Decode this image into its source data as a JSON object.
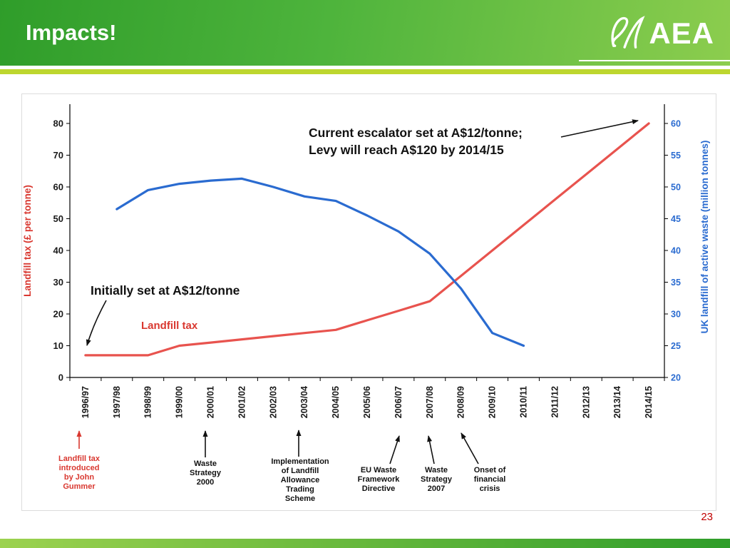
{
  "header": {
    "title": "Impacts!",
    "logo_text": "AEA"
  },
  "page_number": "23",
  "colors": {
    "header_gradient_start": "#2f9d2a",
    "header_gradient_end": "#8ccd4e",
    "accent_line": "#bdd62f",
    "landfill_tax_line": "#e8534e",
    "waste_line": "#2a6bd0",
    "event_red": "#d93830",
    "page_number_red": "#c00000"
  },
  "chart_data": {
    "type": "line",
    "categories": [
      "1996/97",
      "1997/98",
      "1998/99",
      "1999/00",
      "2000/01",
      "2001/02",
      "2002/03",
      "2003/04",
      "2004/05",
      "2005/06",
      "2006/07",
      "2007/08",
      "2008/09",
      "2009/10",
      "2010/11",
      "2011/12",
      "2012/13",
      "2013/14",
      "2014/15"
    ],
    "series": [
      {
        "name": "Landfill tax",
        "axis": "left",
        "color": "#e8534e",
        "values": [
          7,
          7,
          7,
          10,
          11,
          12,
          13,
          14,
          15,
          18,
          21,
          24,
          32,
          40,
          48,
          56,
          64,
          72,
          80
        ]
      },
      {
        "name": "UK landfill of active waste",
        "axis": "right",
        "color": "#2a6bd0",
        "values": [
          null,
          46.5,
          49.5,
          50.5,
          51,
          51.3,
          50,
          48.5,
          47.8,
          45.5,
          43,
          39.5,
          34,
          27,
          25,
          null,
          null,
          null,
          null
        ]
      }
    ],
    "left_axis": {
      "label": "Landfill tax (£ per tonne)",
      "min": 0,
      "max": 80,
      "ticks": [
        0,
        10,
        20,
        30,
        40,
        50,
        60,
        70,
        80
      ]
    },
    "right_axis": {
      "label": "UK landfill of active waste (million tonnes)",
      "min": 20,
      "max": 60,
      "ticks": [
        20,
        25,
        30,
        35,
        40,
        45,
        50,
        55,
        60
      ]
    },
    "grid": false,
    "legend": false
  },
  "annotations": {
    "escalator": "Current escalator set at A$12/tonne;\nLevy will reach A$120 by 2014/15",
    "initial": "Initially set at A$12/tonne",
    "series_label": "Landfill tax",
    "events": [
      {
        "text": "Landfill tax\nintroduced\nby John\nGummer"
      },
      {
        "text": "Waste\nStrategy\n2000"
      },
      {
        "text": "Implementation\nof Landfill\nAllowance\nTrading\nScheme"
      },
      {
        "text": "EU Waste\nFramework\nDirective"
      },
      {
        "text": "Waste\nStrategy\n2007"
      },
      {
        "text": "Onset of\nfinancial\ncrisis"
      }
    ]
  }
}
